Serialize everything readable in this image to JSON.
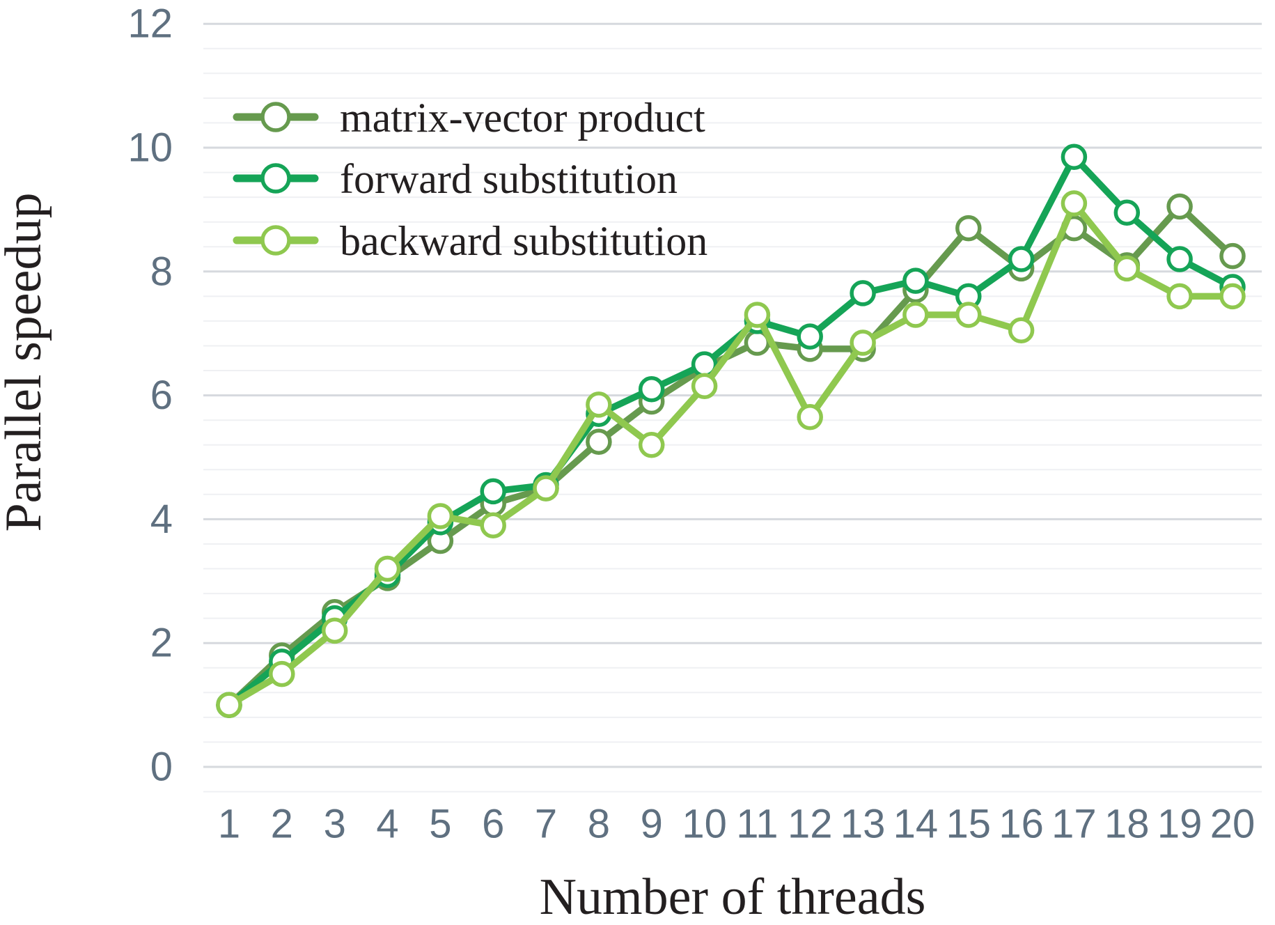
{
  "chart_data": {
    "type": "line",
    "title": "",
    "xlabel": "Number of threads",
    "ylabel": "Parallel speedup",
    "x": [
      1,
      2,
      3,
      4,
      5,
      6,
      7,
      8,
      9,
      10,
      11,
      12,
      13,
      14,
      15,
      16,
      17,
      18,
      19,
      20
    ],
    "series": [
      {
        "name": "matrix-vector product",
        "color": "#669a4e",
        "marker": "open-circle",
        "values": [
          1.0,
          1.8,
          2.5,
          3.05,
          3.65,
          4.25,
          4.5,
          5.25,
          5.9,
          6.45,
          6.85,
          6.75,
          6.75,
          7.7,
          8.7,
          8.05,
          8.7,
          8.1,
          9.05,
          8.25
        ]
      },
      {
        "name": "forward substitution",
        "color": "#15a457",
        "marker": "open-circle",
        "values": [
          1.0,
          1.7,
          2.4,
          3.1,
          3.95,
          4.45,
          4.55,
          5.7,
          6.1,
          6.5,
          7.2,
          6.95,
          7.65,
          7.85,
          7.6,
          8.2,
          9.85,
          8.95,
          8.2,
          7.75
        ]
      },
      {
        "name": "backward substitution",
        "color": "#8fc84f",
        "marker": "open-circle",
        "values": [
          1.0,
          1.5,
          2.2,
          3.2,
          4.05,
          3.9,
          4.5,
          5.85,
          5.2,
          6.15,
          7.3,
          5.65,
          6.85,
          7.3,
          7.3,
          7.05,
          9.1,
          8.05,
          7.6,
          7.6
        ]
      }
    ],
    "ylim": [
      0,
      12
    ],
    "yticks": [
      0,
      2,
      4,
      6,
      8,
      10,
      12
    ],
    "minor_grid_step": 0.4,
    "grid": "horizontal-only",
    "grid_major_color": "#d6d9de",
    "grid_minor_color": "#eff0f3",
    "tick_color": "#5f7080",
    "legend_position": "top-left",
    "background": "#ffffff"
  }
}
